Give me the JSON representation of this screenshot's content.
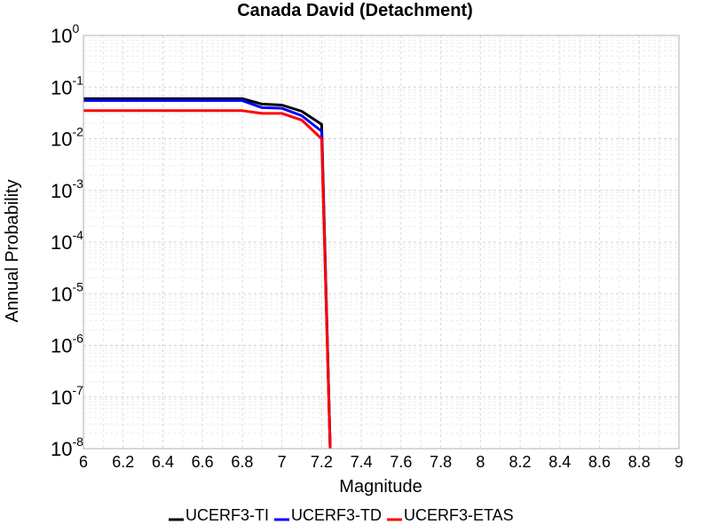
{
  "chart_data": {
    "type": "line",
    "title": "Canada David (Detachment)",
    "xlabel": "Magnitude",
    "ylabel": "Annual Probability",
    "xlim": [
      6,
      9
    ],
    "ylim": [
      1e-08,
      1
    ],
    "yscale": "log",
    "grid": true,
    "legend_placement": "bottom-center",
    "x_ticks": [
      "6",
      "6.2",
      "6.4",
      "6.6",
      "6.8",
      "7",
      "7.2",
      "7.4",
      "7.6",
      "7.8",
      "8",
      "8.2",
      "8.4",
      "8.6",
      "8.8",
      "9"
    ],
    "y_ticks": [
      {
        "base": "10",
        "exp": "0"
      },
      {
        "base": "10",
        "exp": "-1"
      },
      {
        "base": "10",
        "exp": "-2"
      },
      {
        "base": "10",
        "exp": "-3"
      },
      {
        "base": "10",
        "exp": "-4"
      },
      {
        "base": "10",
        "exp": "-5"
      },
      {
        "base": "10",
        "exp": "-6"
      },
      {
        "base": "10",
        "exp": "-7"
      },
      {
        "base": "10",
        "exp": "-8"
      }
    ],
    "series": [
      {
        "name": "UCERF3-TI",
        "color": "#000000",
        "x": [
          6.0,
          6.1,
          6.2,
          6.3,
          6.4,
          6.5,
          6.6,
          6.7,
          6.8,
          6.9,
          7.0,
          7.1,
          7.2,
          7.25
        ],
        "y": [
          0.06,
          0.06,
          0.06,
          0.06,
          0.06,
          0.06,
          0.06,
          0.06,
          0.06,
          0.047,
          0.045,
          0.034,
          0.019,
          1e-09
        ]
      },
      {
        "name": "UCERF3-TD",
        "color": "#0000ff",
        "x": [
          6.0,
          6.1,
          6.2,
          6.3,
          6.4,
          6.5,
          6.6,
          6.7,
          6.8,
          6.9,
          7.0,
          7.1,
          7.2,
          7.25
        ],
        "y": [
          0.055,
          0.055,
          0.055,
          0.055,
          0.055,
          0.055,
          0.055,
          0.055,
          0.055,
          0.04,
          0.039,
          0.028,
          0.014,
          1e-09
        ]
      },
      {
        "name": "UCERF3-ETAS",
        "color": "#ff0000",
        "x": [
          6.0,
          6.1,
          6.2,
          6.3,
          6.4,
          6.5,
          6.6,
          6.7,
          6.8,
          6.9,
          7.0,
          7.1,
          7.2,
          7.25
        ],
        "y": [
          0.035,
          0.035,
          0.035,
          0.035,
          0.035,
          0.035,
          0.035,
          0.035,
          0.035,
          0.031,
          0.031,
          0.023,
          0.01,
          1e-09
        ]
      }
    ]
  }
}
